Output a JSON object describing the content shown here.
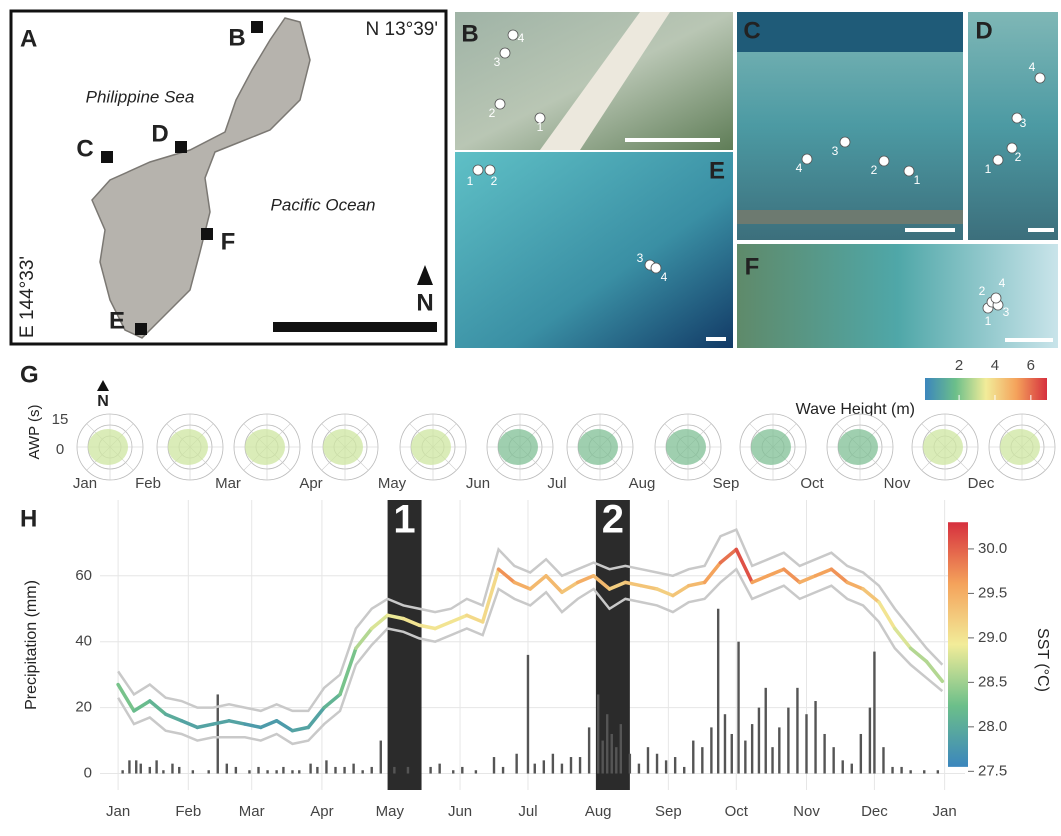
{
  "panel_a": {
    "label": "A",
    "latitude": "N 13°39'",
    "longitude": "E 144°33'",
    "sea_labels": [
      "Philippine Sea",
      "Pacific Ocean"
    ],
    "site_labels": [
      "B",
      "C",
      "D",
      "E",
      "F"
    ],
    "north": "N"
  },
  "satellite_panels": [
    {
      "label": "B",
      "sites": [
        "1",
        "2",
        "3",
        "4"
      ]
    },
    {
      "label": "C",
      "sites": [
        "1",
        "2",
        "3",
        "4"
      ]
    },
    {
      "label": "D",
      "sites": [
        "1",
        "2",
        "3",
        "4"
      ]
    },
    {
      "label": "E",
      "sites": [
        "1",
        "2",
        "3",
        "4"
      ]
    },
    {
      "label": "F",
      "sites": [
        "1",
        "2",
        "3",
        "4"
      ]
    }
  ],
  "panel_g": {
    "label": "G",
    "north": "N",
    "y_label": "AWP (s)",
    "r_ticks": [
      15,
      0
    ],
    "months": [
      "Jan",
      "Feb",
      "Mar",
      "Apr",
      "May",
      "Jun",
      "Jul",
      "Aug",
      "Sep",
      "Oct",
      "Nov",
      "Dec"
    ],
    "colorbar": {
      "label": "Wave Height (m)",
      "lim": [
        0.1,
        6.9
      ],
      "ticks": [
        2,
        4,
        6
      ]
    }
  },
  "chart_data": {
    "type": "line",
    "panel_label": "H",
    "ylabel": "Precipitation (mm)",
    "y2label": "SST (°C)",
    "xlim": [
      -8,
      374
    ],
    "xticks": [
      {
        "value": 0,
        "label": "Jan"
      },
      {
        "value": 31,
        "label": "Feb"
      },
      {
        "value": 59,
        "label": "Mar"
      },
      {
        "value": 90,
        "label": "Apr"
      },
      {
        "value": 120,
        "label": "May"
      },
      {
        "value": 151,
        "label": "Jun"
      },
      {
        "value": 181,
        "label": "Jul"
      },
      {
        "value": 212,
        "label": "Aug"
      },
      {
        "value": 243,
        "label": "Sep"
      },
      {
        "value": 273,
        "label": "Oct"
      },
      {
        "value": 304,
        "label": "Nov"
      },
      {
        "value": 334,
        "label": "Dec"
      },
      {
        "value": 365,
        "label": "Jan"
      }
    ],
    "ylim": [
      -5,
      83
    ],
    "yticks": [
      0,
      20,
      40,
      60
    ],
    "grid": true,
    "y2lim": [
      27.29,
      30.55
    ],
    "y2ticks": [
      27.5,
      {
        "value": 28,
        "label": "28.0"
      },
      28.5,
      {
        "value": 29,
        "label": "29.0"
      },
      29.5,
      {
        "value": 30,
        "label": "30.0"
      }
    ],
    "colorbar_lim": [
      27.55,
      30.3
    ],
    "x": [
      0,
      7,
      14,
      21,
      28,
      35,
      42,
      49,
      56,
      63,
      70,
      77,
      84,
      91,
      98,
      105,
      112,
      119,
      126,
      133,
      140,
      147,
      154,
      161,
      168,
      175,
      182,
      189,
      196,
      203,
      210,
      217,
      224,
      231,
      238,
      245,
      252,
      259,
      266,
      273,
      280,
      287,
      294,
      301,
      308,
      315,
      322,
      329,
      336,
      343,
      350,
      357,
      364
    ],
    "series": [
      {
        "values": [
          27,
          19,
          22,
          18,
          16,
          14,
          15,
          16,
          15,
          14,
          16,
          13,
          14,
          20,
          24,
          38,
          44,
          48,
          47,
          45,
          44,
          46,
          48,
          46,
          62,
          58,
          56,
          60,
          55,
          58,
          60,
          56,
          58,
          57,
          56,
          54,
          57,
          58,
          64,
          68,
          58,
          60,
          62,
          58,
          60,
          62,
          58,
          56,
          52,
          44,
          38,
          34,
          28
        ],
        "sst": [
          28.3,
          28.2,
          28.1,
          28.0,
          27.9,
          27.9,
          27.9,
          27.9,
          27.8,
          27.8,
          27.8,
          27.9,
          27.9,
          28.1,
          28.3,
          28.6,
          28.8,
          28.9,
          29.0,
          29.0,
          29.0,
          29.0,
          29.1,
          29.1,
          29.7,
          29.5,
          29.4,
          29.4,
          29.3,
          29.5,
          29.4,
          29.2,
          29.3,
          29.3,
          29.2,
          29.3,
          29.4,
          29.6,
          29.9,
          30.1,
          29.6,
          29.6,
          29.7,
          29.5,
          29.6,
          29.7,
          29.5,
          29.3,
          29.0,
          28.8,
          28.6,
          28.6,
          28.5
        ]
      },
      {
        "color": "#c9c9c9",
        "values": [
          31,
          24,
          27,
          23,
          22,
          20,
          20,
          21,
          20,
          19,
          21,
          19,
          19,
          26,
          30,
          44,
          50,
          53,
          51,
          50,
          49,
          50,
          53,
          51,
          68,
          63,
          61,
          65,
          60,
          62,
          64,
          62,
          63,
          62,
          61,
          60,
          62,
          63,
          72,
          74,
          63,
          65,
          67,
          63,
          65,
          67,
          63,
          61,
          57,
          50,
          44,
          38,
          33
        ]
      },
      {
        "color": "#c9c9c9",
        "values": [
          23,
          15,
          17,
          13,
          12,
          10,
          11,
          11,
          11,
          10,
          12,
          9,
          10,
          15,
          19,
          33,
          39,
          44,
          43,
          41,
          40,
          42,
          44,
          42,
          56,
          53,
          51,
          55,
          49,
          53,
          56,
          50,
          53,
          52,
          51,
          49,
          52,
          53,
          58,
          62,
          53,
          55,
          57,
          53,
          55,
          57,
          53,
          51,
          46,
          38,
          33,
          29,
          25
        ]
      }
    ],
    "bars": {
      "color": "#555555",
      "x": [
        2,
        5,
        8,
        10,
        14,
        17,
        20,
        24,
        27,
        33,
        40,
        44,
        48,
        52,
        58,
        62,
        66,
        70,
        73,
        77,
        80,
        85,
        88,
        92,
        96,
        100,
        104,
        108,
        112,
        116,
        122,
        128,
        138,
        142,
        148,
        152,
        158,
        166,
        170,
        176,
        181,
        184,
        188,
        192,
        196,
        200,
        204,
        208,
        212,
        214,
        216,
        218,
        220,
        222,
        226,
        230,
        234,
        238,
        242,
        246,
        250,
        254,
        258,
        262,
        265,
        268,
        271,
        274,
        277,
        280,
        283,
        286,
        289,
        292,
        296,
        300,
        304,
        308,
        312,
        316,
        320,
        324,
        328,
        332,
        334,
        338,
        342,
        346,
        350,
        356,
        362
      ],
      "values": [
        1,
        4,
        4,
        3,
        2,
        4,
        1,
        3,
        2,
        1,
        1,
        24,
        3,
        2,
        1,
        2,
        1,
        1,
        2,
        1,
        1,
        3,
        2,
        4,
        2,
        2,
        3,
        1,
        2,
        10,
        2,
        2,
        2,
        3,
        1,
        2,
        1,
        5,
        2,
        6,
        36,
        3,
        4,
        6,
        3,
        5,
        5,
        14,
        24,
        10,
        18,
        12,
        8,
        15,
        6,
        3,
        8,
        6,
        4,
        5,
        2,
        10,
        8,
        14,
        50,
        18,
        12,
        40,
        10,
        15,
        20,
        26,
        8,
        14,
        20,
        26,
        18,
        22,
        12,
        8,
        4,
        3,
        12,
        20,
        37,
        8,
        2,
        2,
        1,
        1,
        1
      ]
    },
    "periods": [
      {
        "label": "1",
        "start": 119,
        "end": 134
      },
      {
        "label": "2",
        "start": 211,
        "end": 226
      }
    ]
  }
}
